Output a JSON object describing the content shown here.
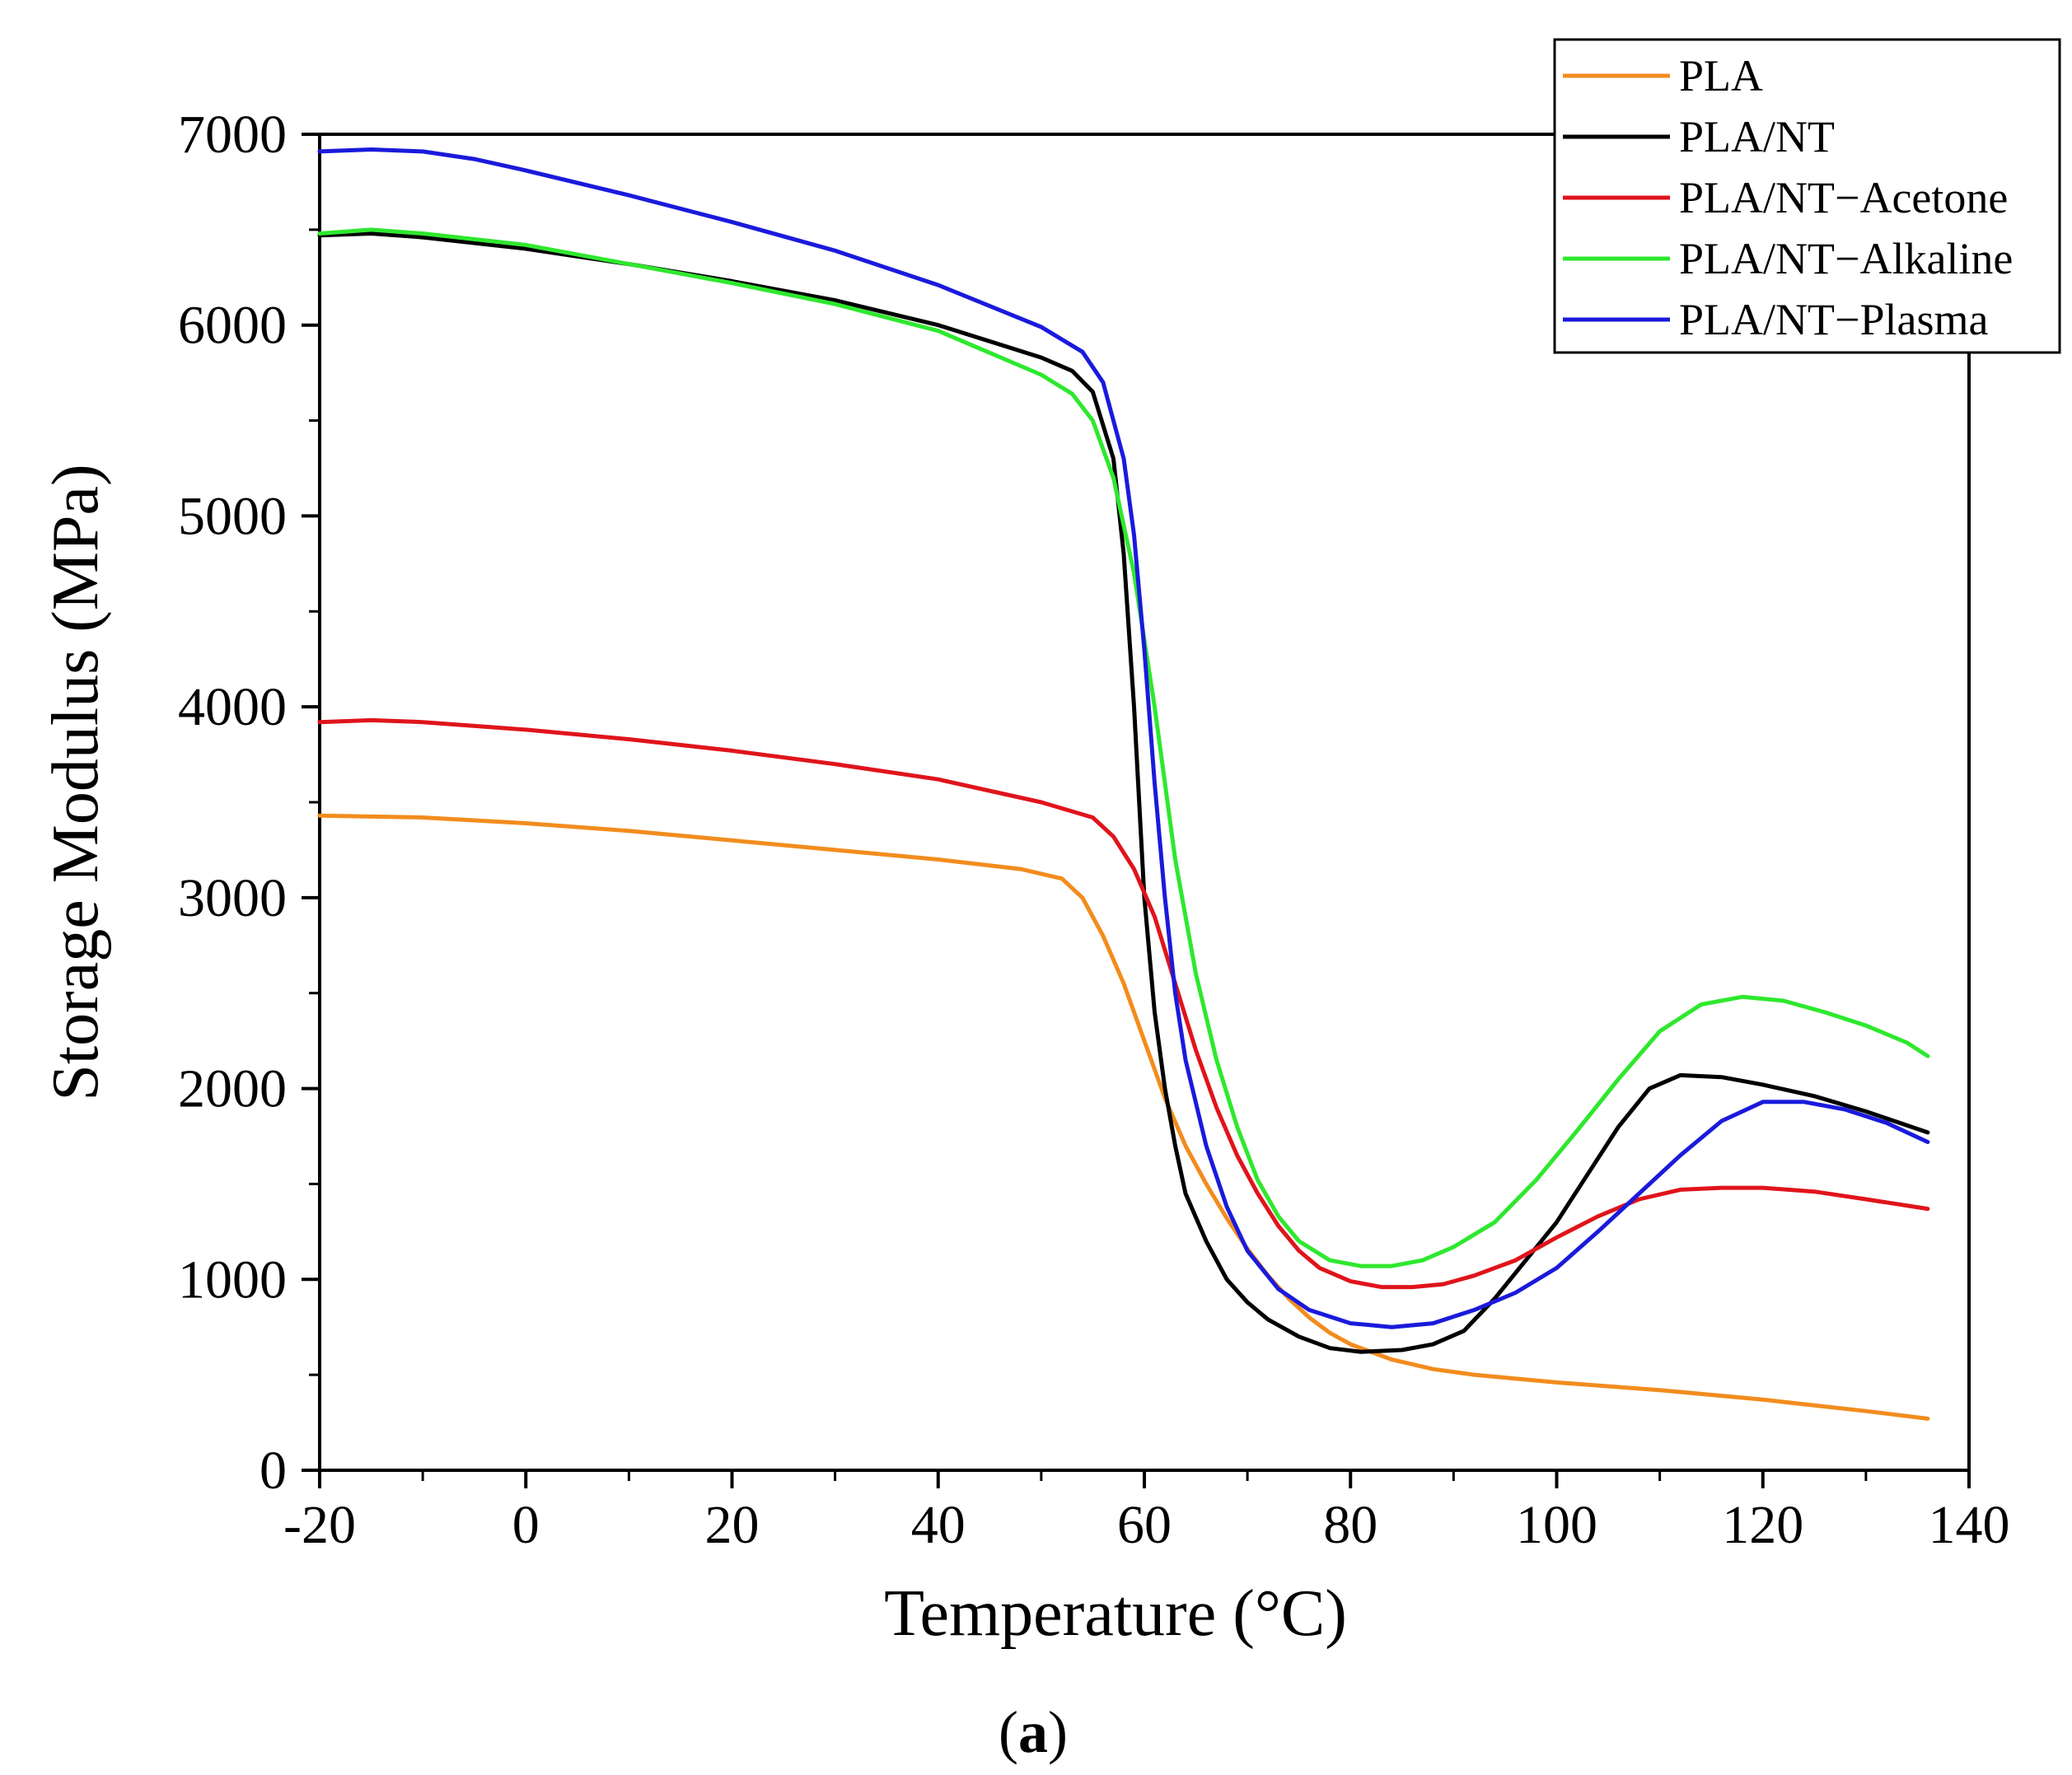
{
  "chart_data": {
    "type": "line",
    "title": "",
    "xlabel": "Temperature (°C)",
    "ylabel": "Storage Modulus (MPa)",
    "xlim": [
      -20,
      140
    ],
    "ylim": [
      0,
      7000
    ],
    "x_ticks": [
      -20,
      0,
      20,
      40,
      60,
      80,
      100,
      120,
      140
    ],
    "x_tick_labels": [
      "-20",
      "0",
      "20",
      "40",
      "60",
      "80",
      "100",
      "120",
      "140"
    ],
    "y_ticks": [
      0,
      1000,
      2000,
      3000,
      4000,
      5000,
      6000,
      7000
    ],
    "y_tick_labels": [
      "0",
      "1000",
      "2000",
      "3000",
      "4000",
      "5000",
      "6000",
      "7000"
    ],
    "grid": false,
    "legend_position": "top-right",
    "caption_open": "(",
    "caption_letter": "a",
    "caption_close": ")",
    "series": [
      {
        "name": "PLA",
        "color": "#f28c1e",
        "points": [
          [
            -20,
            3430
          ],
          [
            -10,
            3420
          ],
          [
            0,
            3390
          ],
          [
            10,
            3350
          ],
          [
            20,
            3300
          ],
          [
            30,
            3250
          ],
          [
            40,
            3200
          ],
          [
            48,
            3150
          ],
          [
            52,
            3100
          ],
          [
            54,
            3000
          ],
          [
            56,
            2800
          ],
          [
            58,
            2550
          ],
          [
            60,
            2250
          ],
          [
            62,
            1950
          ],
          [
            64,
            1700
          ],
          [
            66,
            1500
          ],
          [
            68,
            1320
          ],
          [
            70,
            1160
          ],
          [
            72,
            1020
          ],
          [
            74,
            900
          ],
          [
            76,
            800
          ],
          [
            78,
            720
          ],
          [
            80,
            660
          ],
          [
            84,
            580
          ],
          [
            88,
            530
          ],
          [
            92,
            500
          ],
          [
            100,
            460
          ],
          [
            110,
            420
          ],
          [
            120,
            370
          ],
          [
            130,
            310
          ],
          [
            136,
            270
          ]
        ]
      },
      {
        "name": "PLA/NT",
        "color": "#000000",
        "points": [
          [
            -20,
            6470
          ],
          [
            -15,
            6480
          ],
          [
            -10,
            6460
          ],
          [
            0,
            6400
          ],
          [
            10,
            6320
          ],
          [
            20,
            6230
          ],
          [
            30,
            6130
          ],
          [
            40,
            6000
          ],
          [
            50,
            5830
          ],
          [
            53,
            5760
          ],
          [
            55,
            5650
          ],
          [
            57,
            5300
          ],
          [
            58,
            4800
          ],
          [
            59,
            4000
          ],
          [
            60,
            3000
          ],
          [
            61,
            2400
          ],
          [
            62,
            2000
          ],
          [
            63,
            1700
          ],
          [
            64,
            1450
          ],
          [
            66,
            1200
          ],
          [
            68,
            1000
          ],
          [
            70,
            880
          ],
          [
            72,
            790
          ],
          [
            75,
            700
          ],
          [
            78,
            640
          ],
          [
            81,
            620
          ],
          [
            85,
            630
          ],
          [
            88,
            660
          ],
          [
            91,
            730
          ],
          [
            94,
            900
          ],
          [
            97,
            1100
          ],
          [
            100,
            1300
          ],
          [
            103,
            1550
          ],
          [
            106,
            1800
          ],
          [
            109,
            2000
          ],
          [
            112,
            2070
          ],
          [
            116,
            2060
          ],
          [
            120,
            2020
          ],
          [
            125,
            1960
          ],
          [
            130,
            1880
          ],
          [
            136,
            1770
          ]
        ]
      },
      {
        "name": "PLA/NT−Acetone",
        "color": "#e0141b",
        "points": [
          [
            -20,
            3920
          ],
          [
            -15,
            3930
          ],
          [
            -10,
            3920
          ],
          [
            0,
            3880
          ],
          [
            10,
            3830
          ],
          [
            20,
            3770
          ],
          [
            30,
            3700
          ],
          [
            40,
            3620
          ],
          [
            50,
            3500
          ],
          [
            55,
            3420
          ],
          [
            57,
            3320
          ],
          [
            59,
            3150
          ],
          [
            61,
            2900
          ],
          [
            63,
            2550
          ],
          [
            65,
            2200
          ],
          [
            67,
            1900
          ],
          [
            69,
            1650
          ],
          [
            71,
            1450
          ],
          [
            73,
            1280
          ],
          [
            75,
            1150
          ],
          [
            77,
            1060
          ],
          [
            80,
            990
          ],
          [
            83,
            960
          ],
          [
            86,
            960
          ],
          [
            89,
            975
          ],
          [
            92,
            1020
          ],
          [
            96,
            1100
          ],
          [
            100,
            1220
          ],
          [
            104,
            1330
          ],
          [
            108,
            1420
          ],
          [
            112,
            1470
          ],
          [
            116,
            1480
          ],
          [
            120,
            1480
          ],
          [
            125,
            1460
          ],
          [
            130,
            1420
          ],
          [
            136,
            1370
          ]
        ]
      },
      {
        "name": "PLA/NT−Alkaline",
        "color": "#2ee82e",
        "points": [
          [
            -20,
            6480
          ],
          [
            -15,
            6500
          ],
          [
            -10,
            6480
          ],
          [
            0,
            6420
          ],
          [
            10,
            6320
          ],
          [
            20,
            6220
          ],
          [
            30,
            6110
          ],
          [
            40,
            5970
          ],
          [
            50,
            5740
          ],
          [
            53,
            5640
          ],
          [
            55,
            5500
          ],
          [
            57,
            5200
          ],
          [
            59,
            4700
          ],
          [
            61,
            4000
          ],
          [
            63,
            3200
          ],
          [
            65,
            2600
          ],
          [
            67,
            2150
          ],
          [
            69,
            1800
          ],
          [
            71,
            1520
          ],
          [
            73,
            1330
          ],
          [
            75,
            1200
          ],
          [
            78,
            1100
          ],
          [
            81,
            1070
          ],
          [
            84,
            1070
          ],
          [
            87,
            1100
          ],
          [
            90,
            1170
          ],
          [
            94,
            1300
          ],
          [
            98,
            1520
          ],
          [
            102,
            1780
          ],
          [
            106,
            2050
          ],
          [
            110,
            2300
          ],
          [
            114,
            2440
          ],
          [
            118,
            2480
          ],
          [
            122,
            2460
          ],
          [
            126,
            2400
          ],
          [
            130,
            2330
          ],
          [
            134,
            2240
          ],
          [
            136,
            2170
          ]
        ]
      },
      {
        "name": "PLA/NT−Plasma",
        "color": "#1a1adc",
        "points": [
          [
            -20,
            6910
          ],
          [
            -15,
            6920
          ],
          [
            -10,
            6910
          ],
          [
            -5,
            6870
          ],
          [
            0,
            6810
          ],
          [
            10,
            6680
          ],
          [
            20,
            6540
          ],
          [
            30,
            6390
          ],
          [
            40,
            6210
          ],
          [
            50,
            5990
          ],
          [
            54,
            5860
          ],
          [
            56,
            5700
          ],
          [
            58,
            5300
          ],
          [
            59,
            4900
          ],
          [
            60,
            4300
          ],
          [
            61,
            3600
          ],
          [
            62,
            3000
          ],
          [
            63,
            2500
          ],
          [
            64,
            2150
          ],
          [
            66,
            1700
          ],
          [
            68,
            1380
          ],
          [
            70,
            1150
          ],
          [
            73,
            950
          ],
          [
            76,
            840
          ],
          [
            80,
            770
          ],
          [
            84,
            750
          ],
          [
            88,
            770
          ],
          [
            92,
            840
          ],
          [
            96,
            930
          ],
          [
            100,
            1060
          ],
          [
            104,
            1250
          ],
          [
            108,
            1450
          ],
          [
            112,
            1650
          ],
          [
            116,
            1830
          ],
          [
            120,
            1930
          ],
          [
            124,
            1930
          ],
          [
            128,
            1890
          ],
          [
            132,
            1820
          ],
          [
            136,
            1720
          ]
        ]
      }
    ]
  }
}
